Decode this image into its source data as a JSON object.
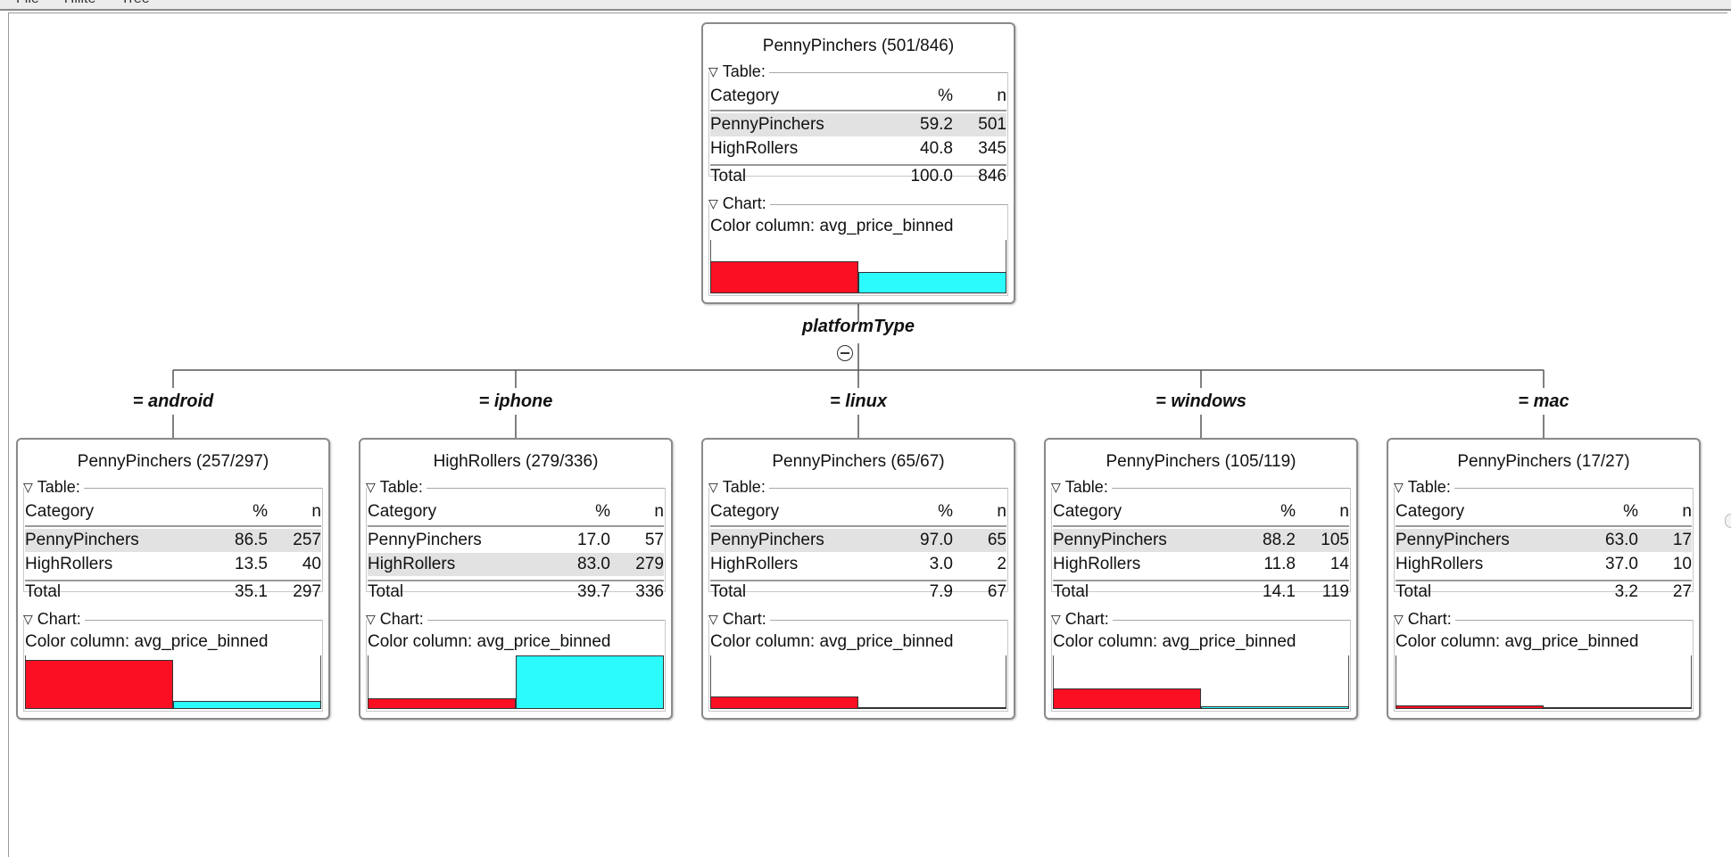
{
  "menu": [
    "File",
    "Hilite",
    "Tree"
  ],
  "split_attribute": "platformType",
  "colors": {
    "PennyPinchers": "#fb0f22",
    "HighRollers": "#2cfbfd"
  },
  "table_headers": {
    "category": "Category",
    "pct": "%",
    "n": "n"
  },
  "section_labels": {
    "table": "Table:",
    "chart": "Chart:"
  },
  "root": {
    "title": "PennyPinchers (501/846)",
    "rows": [
      {
        "category": "PennyPinchers",
        "pct": "59.2",
        "n": "501",
        "highlight": true
      },
      {
        "category": "HighRollers",
        "pct": "40.8",
        "n": "345",
        "highlight": false
      }
    ],
    "total": {
      "label": "Total",
      "pct": "100.0",
      "n": "846"
    },
    "chart_color_column": "Color column: avg_price_binned",
    "bars": [
      0.5922,
      0.4078
    ]
  },
  "children": [
    {
      "edge_label": "= android",
      "title": "PennyPinchers (257/297)",
      "rows": [
        {
          "category": "PennyPinchers",
          "pct": "86.5",
          "n": "257",
          "highlight": true
        },
        {
          "category": "HighRollers",
          "pct": "13.5",
          "n": "40",
          "highlight": false
        }
      ],
      "total": {
        "label": "Total",
        "pct": "35.1",
        "n": "297"
      },
      "chart_color_column": "Color column: avg_price_binned",
      "bars": [
        0.304,
        0.047
      ]
    },
    {
      "edge_label": "= iphone",
      "title": "HighRollers (279/336)",
      "rows": [
        {
          "category": "PennyPinchers",
          "pct": "17.0",
          "n": "57",
          "highlight": false
        },
        {
          "category": "HighRollers",
          "pct": "83.0",
          "n": "279",
          "highlight": true
        }
      ],
      "total": {
        "label": "Total",
        "pct": "39.7",
        "n": "336"
      },
      "chart_color_column": "Color column: avg_price_binned",
      "bars": [
        0.067,
        0.33
      ]
    },
    {
      "edge_label": "= linux",
      "title": "PennyPinchers (65/67)",
      "rows": [
        {
          "category": "PennyPinchers",
          "pct": "97.0",
          "n": "65",
          "highlight": true
        },
        {
          "category": "HighRollers",
          "pct": "3.0",
          "n": "2",
          "highlight": false
        }
      ],
      "total": {
        "label": "Total",
        "pct": "7.9",
        "n": "67"
      },
      "chart_color_column": "Color column: avg_price_binned",
      "bars": [
        0.077,
        0.0024
      ]
    },
    {
      "edge_label": "= windows",
      "title": "PennyPinchers (105/119)",
      "rows": [
        {
          "category": "PennyPinchers",
          "pct": "88.2",
          "n": "105",
          "highlight": true
        },
        {
          "category": "HighRollers",
          "pct": "11.8",
          "n": "14",
          "highlight": false
        }
      ],
      "total": {
        "label": "Total",
        "pct": "14.1",
        "n": "119"
      },
      "chart_color_column": "Color column: avg_price_binned",
      "bars": [
        0.124,
        0.0166
      ]
    },
    {
      "edge_label": "= mac",
      "title": "PennyPinchers (17/27)",
      "rows": [
        {
          "category": "PennyPinchers",
          "pct": "63.0",
          "n": "17",
          "highlight": true
        },
        {
          "category": "HighRollers",
          "pct": "37.0",
          "n": "10",
          "highlight": false
        }
      ],
      "total": {
        "label": "Total",
        "pct": "3.2",
        "n": "27"
      },
      "chart_color_column": "Color column: avg_price_binned",
      "bars": [
        0.02,
        0.0118
      ]
    }
  ]
}
